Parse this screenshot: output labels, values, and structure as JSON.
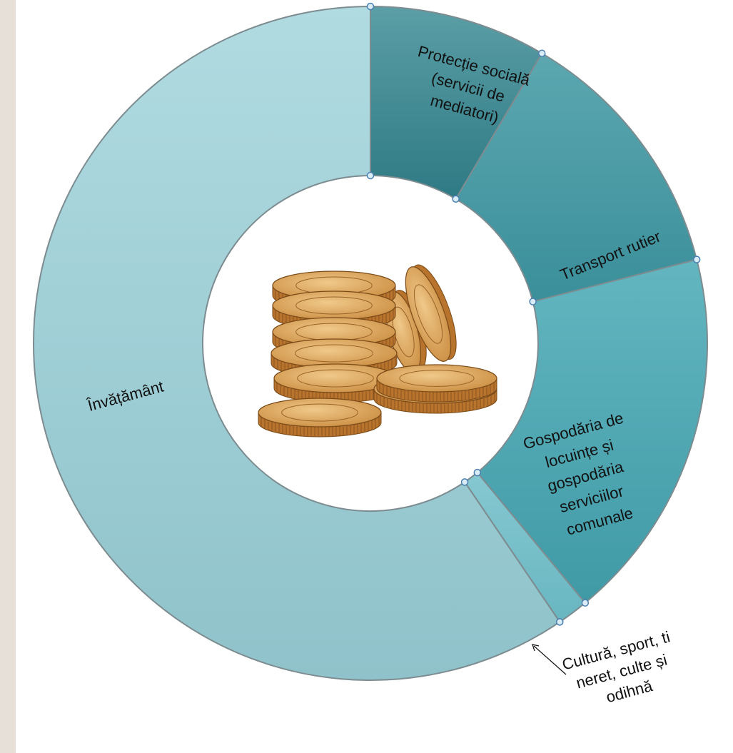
{
  "chart_data": {
    "type": "pie",
    "variant": "donut",
    "title": "",
    "categories": [
      "Protecție socială (servicii de mediatori)",
      "Transport rutier",
      "Gospodăria de locuințe și gospodăria serviciilor comunale",
      "Cultură, sport, ti neret, culte și odihnă",
      "Învățământ"
    ],
    "values": [
      8.5,
      12.5,
      18,
      1.5,
      59.5
    ],
    "unit": "%",
    "colors": [
      "#3c8a94",
      "#3e98a4",
      "#58aeb9",
      "#7cc1cb",
      "#a6d2da"
    ],
    "labels": {
      "social": [
        "Protecție socială",
        "(servicii de",
        "mediatori)"
      ],
      "transport": [
        "Transport rutier"
      ],
      "housing": [
        "Gospodăria de",
        "locuințe și",
        "gospodăria",
        "serviciilor",
        "comunale"
      ],
      "culture": [
        "Cultură, sport, ti",
        "neret, culte și",
        "odihnă"
      ],
      "education": [
        "Învățământ"
      ]
    },
    "center_image": "stack-of-gold-coins",
    "legend": "none",
    "grid": false
  }
}
